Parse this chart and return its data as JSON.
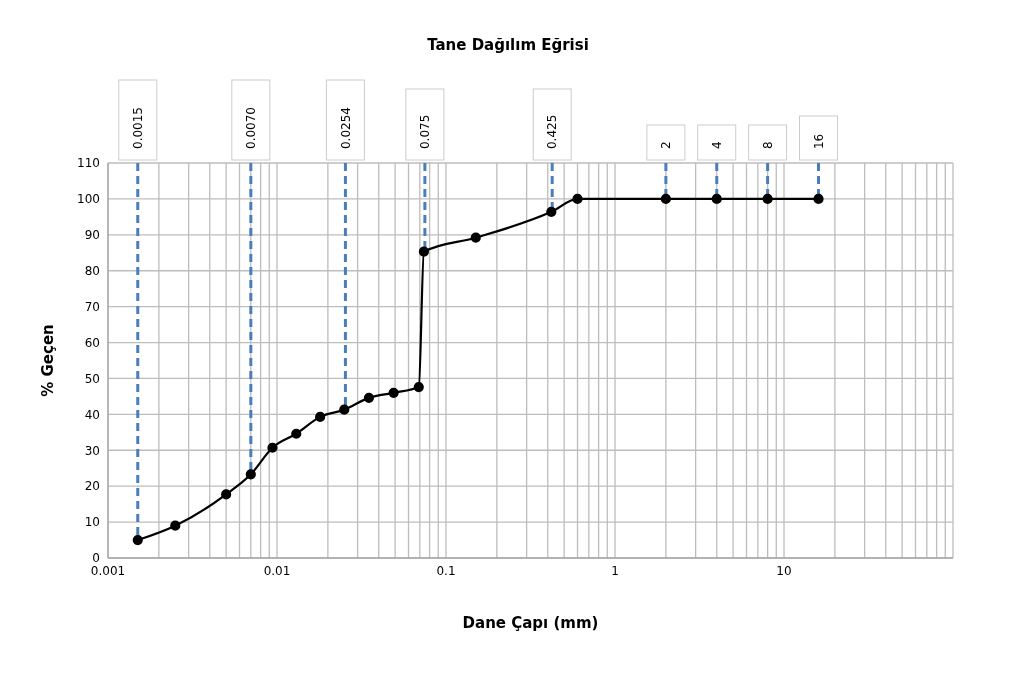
{
  "chart_data": {
    "type": "line",
    "title": "Tane Dağılım Eğrisi",
    "xlabel": "Dane Çapı (mm)",
    "ylabel": "% Geçen",
    "log": "x",
    "grid": true,
    "marker": "circle",
    "line_style": "solid",
    "xlim": [
      0.001,
      100
    ],
    "xticks": [
      0.001,
      {
        "value": 0.002,
        "label": null
      },
      {
        "value": 0.003,
        "label": null
      },
      {
        "value": 0.004,
        "label": null
      },
      {
        "value": 0.005,
        "label": null
      },
      {
        "value": 0.006,
        "label": null
      },
      {
        "value": 0.007,
        "label": null
      },
      {
        "value": 0.008,
        "label": null
      },
      {
        "value": 0.009,
        "label": null
      },
      0.01,
      {
        "value": 0.02,
        "label": null
      },
      {
        "value": 0.03,
        "label": null
      },
      {
        "value": 0.04,
        "label": null
      },
      {
        "value": 0.05,
        "label": null
      },
      {
        "value": 0.06,
        "label": null
      },
      {
        "value": 0.07,
        "label": null
      },
      {
        "value": 0.08,
        "label": null
      },
      {
        "value": 0.09,
        "label": null
      },
      0.1,
      {
        "value": 0.2,
        "label": null
      },
      {
        "value": 0.3,
        "label": null
      },
      {
        "value": 0.4,
        "label": null
      },
      {
        "value": 0.5,
        "label": null
      },
      {
        "value": 0.6,
        "label": null
      },
      {
        "value": 0.7,
        "label": null
      },
      {
        "value": 0.8,
        "label": null
      },
      {
        "value": 0.9,
        "label": null
      },
      1,
      {
        "value": 2,
        "label": null
      },
      {
        "value": 3,
        "label": null
      },
      {
        "value": 4,
        "label": null
      },
      {
        "value": 5,
        "label": null
      },
      {
        "value": 6,
        "label": null
      },
      {
        "value": 7,
        "label": null
      },
      {
        "value": 8,
        "label": null
      },
      {
        "value": 9,
        "label": null
      },
      10,
      {
        "value": 20,
        "label": null
      },
      {
        "value": 30,
        "label": null
      },
      {
        "value": 40,
        "label": null
      },
      {
        "value": 50,
        "label": null
      },
      {
        "value": 60,
        "label": null
      },
      {
        "value": 70,
        "label": null
      },
      {
        "value": 80,
        "label": null
      },
      {
        "value": 90,
        "label": null
      },
      {
        "value": 100,
        "label": null
      }
    ],
    "ylim": [
      0,
      110
    ],
    "yticks": [
      0,
      10,
      20,
      30,
      40,
      50,
      60,
      70,
      80,
      90,
      100,
      110
    ],
    "series": [
      {
        "color": "#000000",
        "x": [
          0.0015,
          0.0025,
          0.005,
          0.007,
          0.0094,
          0.013,
          0.018,
          0.025,
          0.035,
          0.049,
          0.069,
          0.074,
          0.15,
          0.42,
          0.6,
          2,
          4,
          8,
          16
        ],
        "values": [
          5,
          9,
          17.7,
          23.3,
          30.7,
          34.6,
          39.3,
          41.3,
          44.6,
          46,
          47.6,
          85.3,
          89.2,
          96.4,
          100,
          100,
          100,
          100,
          100
        ]
      }
    ],
    "ref_lines": [
      {
        "axis": "x",
        "value": 0.0015,
        "label": "0.0015",
        "color": "#4a7ebb",
        "line_style": "dashed"
      },
      {
        "axis": "x",
        "value": 0.007,
        "label": "0.0070",
        "color": "#4a7ebb",
        "line_style": "dashed"
      },
      {
        "axis": "x",
        "value": 0.0254,
        "label": "0.0254",
        "color": "#4a7ebb",
        "line_style": "dashed"
      },
      {
        "axis": "x",
        "value": 0.075,
        "label": "0.075",
        "color": "#4a7ebb",
        "line_style": "dashed"
      },
      {
        "axis": "x",
        "value": 0.425,
        "label": "0.425",
        "color": "#4a7ebb",
        "line_style": "dashed"
      },
      {
        "axis": "x",
        "value": 2,
        "label": "2",
        "color": "#4a7ebb",
        "line_style": "dashed"
      },
      {
        "axis": "x",
        "value": 4,
        "label": "4",
        "color": "#4a7ebb",
        "line_style": "dashed"
      },
      {
        "axis": "x",
        "value": 8,
        "label": "8",
        "color": "#4a7ebb",
        "line_style": "dashed"
      },
      {
        "axis": "x",
        "value": 16,
        "label": "16",
        "color": "#4a7ebb",
        "line_style": "dashed"
      }
    ]
  }
}
